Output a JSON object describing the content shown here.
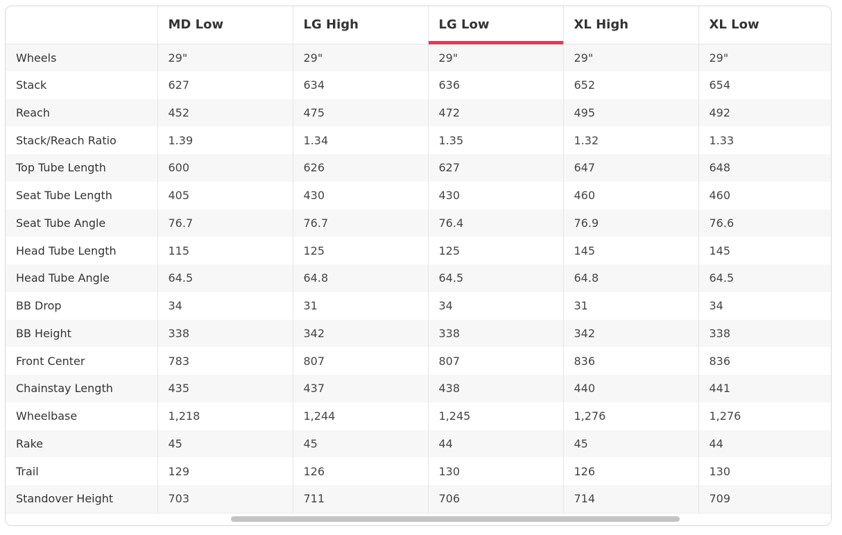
{
  "accent_color": "#e8375a",
  "table": {
    "columns": [
      "",
      "MD Low",
      "LG High",
      "LG Low",
      "XL High",
      "XL Low"
    ],
    "active_column": "LG Low",
    "rows": [
      [
        "Wheels",
        "29\"",
        "29\"",
        "29\"",
        "29\"",
        "29\""
      ],
      [
        "Stack",
        "627",
        "634",
        "636",
        "652",
        "654"
      ],
      [
        "Reach",
        "452",
        "475",
        "472",
        "495",
        "492"
      ],
      [
        "Stack/Reach Ratio",
        "1.39",
        "1.34",
        "1.35",
        "1.32",
        "1.33"
      ],
      [
        "Top Tube Length",
        "600",
        "626",
        "627",
        "647",
        "648"
      ],
      [
        "Seat Tube Length",
        "405",
        "430",
        "430",
        "460",
        "460"
      ],
      [
        "Seat Tube Angle",
        "76.7",
        "76.7",
        "76.4",
        "76.9",
        "76.6"
      ],
      [
        "Head Tube Length",
        "115",
        "125",
        "125",
        "145",
        "145"
      ],
      [
        "Head Tube Angle",
        "64.5",
        "64.8",
        "64.5",
        "64.8",
        "64.5"
      ],
      [
        "BB Drop",
        "34",
        "31",
        "34",
        "31",
        "34"
      ],
      [
        "BB Height",
        "338",
        "342",
        "338",
        "342",
        "338"
      ],
      [
        "Front Center",
        "783",
        "807",
        "807",
        "836",
        "836"
      ],
      [
        "Chainstay Length",
        "435",
        "437",
        "438",
        "440",
        "441"
      ],
      [
        "Wheelbase",
        "1,218",
        "1,244",
        "1,245",
        "1,276",
        "1,276"
      ],
      [
        "Rake",
        "45",
        "45",
        "44",
        "45",
        "44"
      ],
      [
        "Trail",
        "129",
        "126",
        "130",
        "126",
        "130"
      ],
      [
        "Standover Height",
        "703",
        "711",
        "706",
        "714",
        "709"
      ]
    ]
  },
  "scrollbar": {
    "orientation": "horizontal"
  }
}
